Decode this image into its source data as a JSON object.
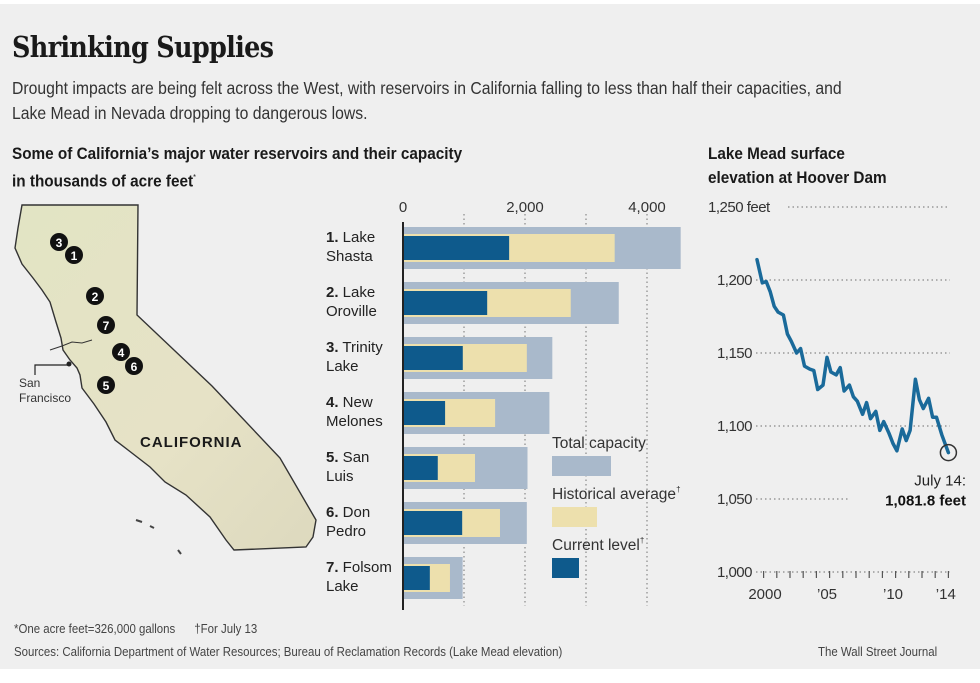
{
  "header": {
    "title": "Shrinking Supplies",
    "dek": "Drought impacts are being felt across the West, with reservoirs in California falling to less than half their capacities, and Lake Mead in Nevada dropping to dangerous lows."
  },
  "left_subhead": {
    "line1": "Some of California’s major water reservoirs and their capacity",
    "line2": "in thousands of acre feet",
    "mark": "*"
  },
  "right_subhead": {
    "line1": "Lake Mead surface",
    "line2": "elevation at Hoover Dam"
  },
  "map": {
    "state_label": "CALIFORNIA",
    "city_label_1": "San",
    "city_label_2": "Francisco",
    "markers": [
      "3",
      "1",
      "2",
      "7",
      "4",
      "6",
      "5"
    ]
  },
  "colors": {
    "total": "#a9b9cb",
    "historical": "#ede0ad",
    "current": "#0e5a8c",
    "line": "#1a6a9a",
    "background": "#efefef"
  },
  "chart_data": [
    {
      "type": "bar",
      "title": "Some of California’s major water reservoirs and their capacity in thousands of acre feet",
      "xlabel": "",
      "ylabel": "",
      "xlim": [
        0,
        4600
      ],
      "xticks": [
        0,
        2000,
        4000
      ],
      "xtick_labels": [
        "0",
        "2,000",
        "4,000"
      ],
      "grid": true,
      "legend_position": "bottom-right",
      "categories": [
        {
          "num": "1.",
          "line1": "Lake",
          "line2": "Shasta"
        },
        {
          "num": "2.",
          "line1": "Lake",
          "line2": "Oroville"
        },
        {
          "num": "3.",
          "line1": "Trinity",
          "line2": "Lake"
        },
        {
          "num": "4.",
          "line1": "New",
          "line2": "Melones"
        },
        {
          "num": "5.",
          "line1": "San",
          "line2": "Luis"
        },
        {
          "num": "6.",
          "line1": "Don",
          "line2": "Pedro"
        },
        {
          "num": "7.",
          "line1": "Folsom",
          "line2": "Lake"
        }
      ],
      "series": [
        {
          "name": "Total capacity",
          "key": "total",
          "values": [
            4552,
            3537,
            2448,
            2400,
            2041,
            2030,
            977
          ]
        },
        {
          "name": "Historical average",
          "key": "historical",
          "mark": "†",
          "values": [
            3470,
            2750,
            2030,
            1510,
            1180,
            1590,
            770
          ]
        },
        {
          "name": "Current level",
          "key": "current",
          "mark": "†",
          "values": [
            1740,
            1380,
            980,
            690,
            570,
            970,
            440
          ]
        }
      ]
    },
    {
      "type": "line",
      "title": "Lake Mead surface elevation at Hoover Dam",
      "ylabel": "feet",
      "ylim": [
        1000,
        1250
      ],
      "yticks": [
        1000,
        1050,
        1100,
        1150,
        1200,
        1250
      ],
      "ytick_labels": [
        "1,000",
        "1,050",
        "1,100",
        "1,150",
        "1,200",
        "1,250 feet"
      ],
      "xlim": [
        2000,
        2014.6
      ],
      "xticks": [
        2000,
        2005,
        2010,
        2014
      ],
      "xtick_labels": [
        "2000",
        "’05",
        "’10",
        "’14"
      ],
      "grid": true,
      "series": [
        {
          "name": "Lake Mead elevation",
          "x": [
            2000.0,
            2000.4,
            2000.7,
            2001.0,
            2001.3,
            2001.6,
            2002.0,
            2002.3,
            2002.6,
            2003.0,
            2003.3,
            2003.6,
            2004.0,
            2004.3,
            2004.6,
            2005.0,
            2005.3,
            2005.6,
            2006.0,
            2006.3,
            2006.6,
            2007.0,
            2007.3,
            2007.6,
            2008.0,
            2008.3,
            2008.6,
            2009.0,
            2009.3,
            2009.6,
            2010.0,
            2010.3,
            2010.6,
            2011.0,
            2011.3,
            2011.6,
            2012.0,
            2012.3,
            2012.6,
            2013.0,
            2013.3,
            2013.6,
            2014.0,
            2014.5
          ],
          "y": [
            1214,
            1198,
            1199,
            1192,
            1182,
            1178,
            1176,
            1163,
            1158,
            1150,
            1153,
            1141,
            1139,
            1138,
            1125,
            1128,
            1147,
            1137,
            1135,
            1140,
            1124,
            1128,
            1120,
            1117,
            1108,
            1116,
            1105,
            1110,
            1097,
            1103,
            1095,
            1088,
            1083,
            1098,
            1090,
            1097,
            1132,
            1118,
            1112,
            1119,
            1106,
            1106,
            1094,
            1081.8
          ]
        }
      ],
      "annotation": {
        "label_1": "July 14:",
        "label_2": "1,081.8 feet",
        "x": 2014.5,
        "y": 1081.8
      }
    }
  ],
  "footer": {
    "note": "*One acre feet=326,000 gallons",
    "note2": "†For July 13",
    "sources": "Sources: California Department of Water Resources; Bureau of Reclamation Records (Lake Mead elevation)",
    "credit": "The Wall Street Journal"
  }
}
